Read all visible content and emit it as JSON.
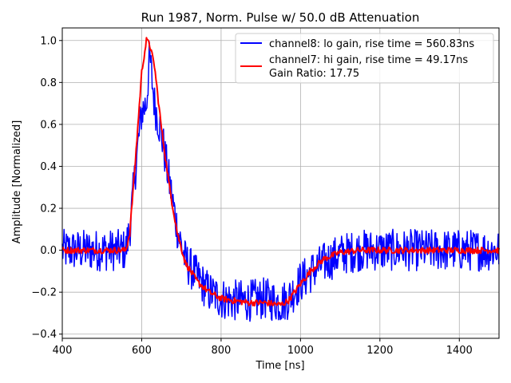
{
  "chart_data": {
    "type": "line",
    "title": "Run 1987, Norm. Pulse w/ 50.0 dB Attenuation",
    "xlabel": "Time [ns]",
    "ylabel": "Amplitude [Normalized]",
    "xlim": [
      400,
      1500
    ],
    "ylim": [
      -0.42,
      1.06
    ],
    "xticks": [
      400,
      600,
      800,
      1000,
      1200,
      1400
    ],
    "yticks": [
      -0.4,
      -0.2,
      0.0,
      0.2,
      0.4,
      0.6,
      0.8,
      1.0
    ],
    "ytick_labels": [
      "−0.4",
      "−0.2",
      "0.0",
      "0.2",
      "0.4",
      "0.6",
      "0.8",
      "1.0"
    ],
    "grid": true,
    "legend_position": "top-right",
    "series": [
      {
        "name": "channel8: lo gain, rise time = 560.83ns",
        "color": "#0000ff",
        "noise_amplitude": 0.1,
        "x": [
          400,
          560,
          570,
          585,
          600,
          612,
          620,
          632,
          650,
          670,
          690,
          710,
          740,
          770,
          800,
          830,
          870,
          910,
          950,
          970,
          1000,
          1030,
          1060,
          1100,
          1150,
          1200,
          1300,
          1400,
          1500
        ],
        "y": [
          0.0,
          0.0,
          0.1,
          0.4,
          0.66,
          0.7,
          0.93,
          0.7,
          0.55,
          0.32,
          0.1,
          -0.05,
          -0.13,
          -0.2,
          -0.23,
          -0.24,
          -0.24,
          -0.23,
          -0.25,
          -0.23,
          -0.15,
          -0.1,
          -0.06,
          -0.02,
          0.0,
          0.0,
          0.0,
          0.0,
          0.0
        ]
      },
      {
        "name": "channel7: hi gain, rise time = 49.17ns",
        "color": "#ff0000",
        "noise_amplitude": 0.015,
        "x": [
          400,
          560,
          570,
          585,
          600,
          612,
          620,
          632,
          650,
          670,
          690,
          710,
          740,
          770,
          800,
          830,
          870,
          910,
          950,
          970,
          1000,
          1030,
          1060,
          1100,
          1150,
          1200,
          1300,
          1400,
          1500
        ],
        "y": [
          0.0,
          0.0,
          0.08,
          0.45,
          0.85,
          1.0,
          0.98,
          0.88,
          0.58,
          0.3,
          0.08,
          -0.06,
          -0.15,
          -0.2,
          -0.23,
          -0.24,
          -0.25,
          -0.25,
          -0.26,
          -0.24,
          -0.16,
          -0.09,
          -0.04,
          -0.01,
          0.0,
          0.0,
          0.0,
          0.0,
          0.0
        ]
      }
    ],
    "legend_extra": "Gain Ratio: 17.75"
  }
}
